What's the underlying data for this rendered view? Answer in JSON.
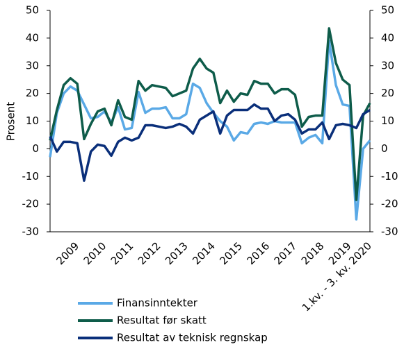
{
  "chart_data": {
    "type": "line",
    "y_label": "Prosent",
    "categories": [
      null,
      null,
      null,
      null,
      "2009",
      null,
      null,
      null,
      "2010",
      null,
      null,
      null,
      "2011",
      null,
      null,
      null,
      "2012",
      null,
      null,
      null,
      "2013",
      null,
      null,
      null,
      "2014",
      null,
      null,
      null,
      "2015",
      null,
      null,
      null,
      "2016",
      null,
      null,
      null,
      "2017",
      null,
      null,
      null,
      "2018",
      null,
      null,
      null,
      "2019",
      null,
      null,
      "1.kv. - 3. kv. 2020"
    ],
    "series": [
      {
        "name": "Finansinntekter",
        "color": "#5aa9e6",
        "values": [
          -3,
          13,
          20,
          22.5,
          21,
          16,
          11,
          11.5,
          13.5,
          9.5,
          15,
          7,
          7.5,
          20.5,
          13,
          14.5,
          14.5,
          15,
          11,
          11,
          12.5,
          23.5,
          22,
          16.5,
          13,
          10,
          8,
          3,
          6,
          5.5,
          9,
          9.5,
          9,
          10,
          9.5,
          9.5,
          9.5,
          2,
          4,
          5,
          2,
          39,
          23,
          16,
          15.5,
          -25.5,
          0,
          3
        ]
      },
      {
        "name": "Resultat før skatt",
        "color": "#0e5c4a",
        "values": [
          3,
          14,
          23,
          25.5,
          23.5,
          3.5,
          9,
          13.5,
          14.5,
          8.5,
          17.5,
          11.5,
          10.5,
          24.5,
          21,
          23,
          22.5,
          22,
          19,
          20,
          21,
          29,
          32.5,
          29,
          27.5,
          16.5,
          21,
          17,
          20,
          19.5,
          24.5,
          23.5,
          23.5,
          20,
          21.5,
          21.5,
          19.5,
          8,
          11.5,
          12,
          12,
          43.5,
          31,
          25,
          23,
          -18.5,
          12,
          16.5
        ]
      },
      {
        "name": "Resultat av teknisk regnskap",
        "color": "#0a2f7a",
        "values": [
          4.5,
          -1,
          2.5,
          2.5,
          2,
          -11.5,
          -1,
          1.5,
          1,
          -2.5,
          2.5,
          4,
          3,
          4,
          8.5,
          8.5,
          8,
          7.5,
          8,
          9,
          8,
          5.5,
          10.5,
          12,
          13.5,
          5.5,
          12,
          14,
          14,
          14,
          16,
          14.5,
          14.5,
          10,
          12,
          12.5,
          10.5,
          5.5,
          7,
          7,
          9.5,
          3.5,
          8.5,
          9,
          8.5,
          7.5,
          12.5,
          14
        ]
      }
    ],
    "ylim": [
      -30,
      50
    ],
    "yticks": [
      -30,
      -20,
      -10,
      0,
      10,
      20,
      30,
      40,
      50
    ],
    "y2lim": [
      -30,
      50
    ],
    "y2ticks": [
      -30,
      -20,
      -10,
      0,
      10,
      20,
      30,
      40,
      50
    ],
    "grid": false,
    "legend": "bottom-left"
  }
}
